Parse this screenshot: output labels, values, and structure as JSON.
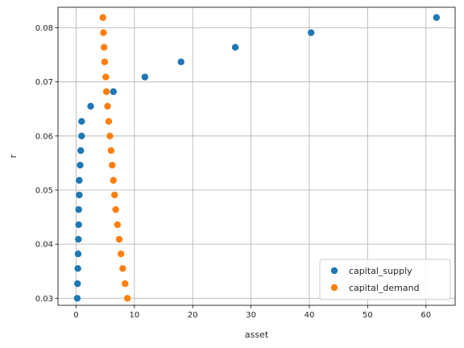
{
  "chart_data": {
    "type": "scatter",
    "title": "",
    "xlabel": "asset",
    "ylabel": "r",
    "xlim": [
      -3.1,
      65.0
    ],
    "ylim": [
      0.0287,
      0.0838
    ],
    "xticks": [
      0,
      10,
      20,
      30,
      40,
      50,
      60
    ],
    "yticks": [
      0.03,
      0.04,
      0.05,
      0.06,
      0.07,
      0.08
    ],
    "grid": true,
    "legend_position": "lower-right",
    "series": [
      {
        "name": "capital_supply",
        "color": "#1f77b4",
        "points": [
          [
            0.2,
            0.03
          ],
          [
            0.25,
            0.0327
          ],
          [
            0.3,
            0.0355
          ],
          [
            0.35,
            0.0382
          ],
          [
            0.4,
            0.0409
          ],
          [
            0.45,
            0.0436
          ],
          [
            0.45,
            0.0464
          ],
          [
            0.55,
            0.0491
          ],
          [
            0.55,
            0.0518
          ],
          [
            0.7,
            0.0546
          ],
          [
            0.8,
            0.0573
          ],
          [
            0.95,
            0.06
          ],
          [
            0.95,
            0.0627
          ],
          [
            2.5,
            0.0655
          ],
          [
            6.4,
            0.0682
          ],
          [
            11.8,
            0.0709
          ],
          [
            18.0,
            0.0737
          ],
          [
            27.3,
            0.0764
          ],
          [
            40.3,
            0.0791
          ],
          [
            61.8,
            0.0819
          ]
        ]
      },
      {
        "name": "capital_demand",
        "color": "#ff7f0e",
        "points": [
          [
            8.8,
            0.03
          ],
          [
            8.4,
            0.0327
          ],
          [
            8.0,
            0.0355
          ],
          [
            7.7,
            0.0382
          ],
          [
            7.4,
            0.0409
          ],
          [
            7.1,
            0.0436
          ],
          [
            6.8,
            0.0464
          ],
          [
            6.6,
            0.0491
          ],
          [
            6.4,
            0.0518
          ],
          [
            6.2,
            0.0546
          ],
          [
            6.0,
            0.0573
          ],
          [
            5.8,
            0.06
          ],
          [
            5.6,
            0.0627
          ],
          [
            5.4,
            0.0655
          ],
          [
            5.2,
            0.0682
          ],
          [
            5.1,
            0.0709
          ],
          [
            4.9,
            0.0737
          ],
          [
            4.8,
            0.0764
          ],
          [
            4.7,
            0.0791
          ],
          [
            4.6,
            0.0819
          ]
        ]
      }
    ]
  }
}
